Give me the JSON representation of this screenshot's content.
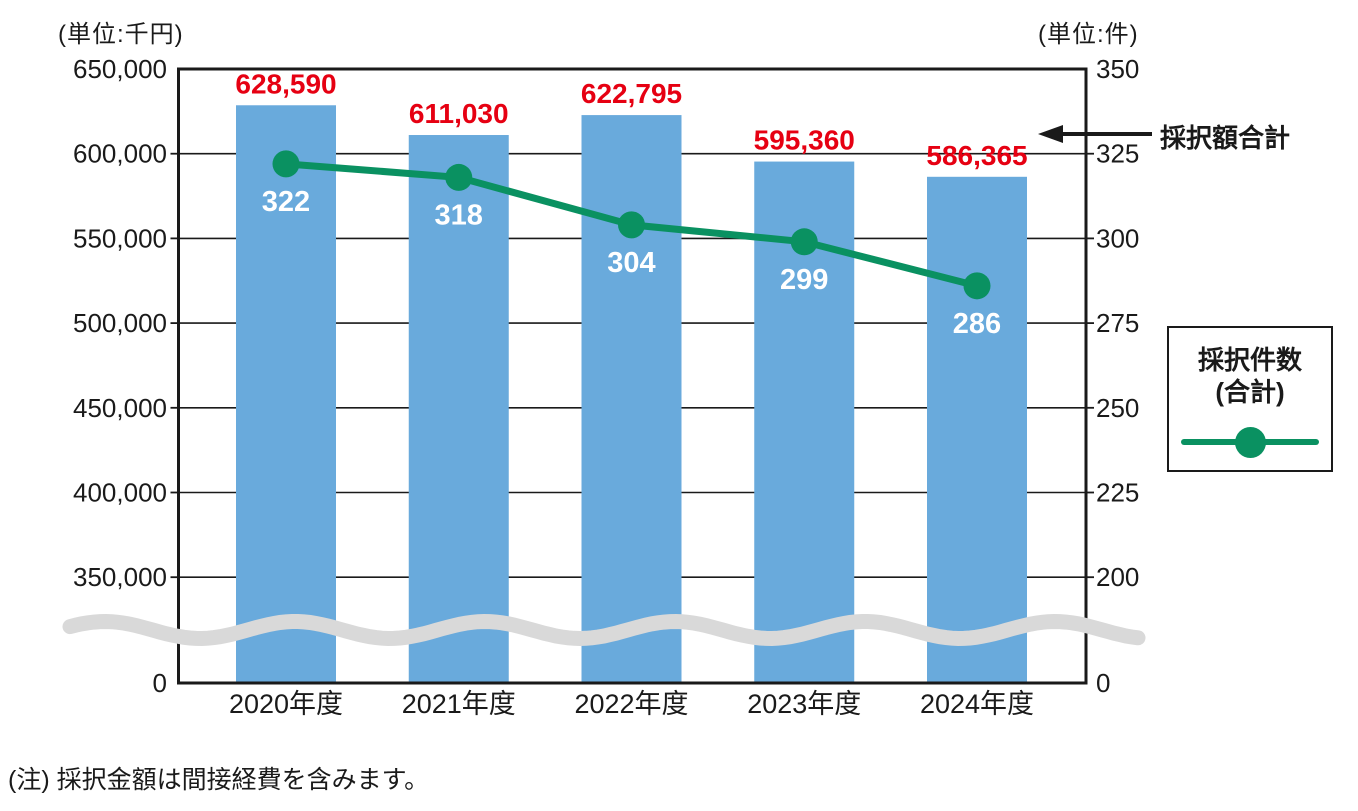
{
  "colors": {
    "bar": "#69AADC",
    "line": "#0A9161",
    "value_label": "#E60012",
    "point_label": "#FFFFFF",
    "axis": "#1A1A1A",
    "grid": "#1A1A1A",
    "wave": "#D9D9D9",
    "background": "#FFFFFF"
  },
  "chart_data": {
    "type": "combo-bar-line",
    "categories": [
      "2020年度",
      "2021年度",
      "2022年度",
      "2023年度",
      "2024年度"
    ],
    "series": [
      {
        "name": "採択額合計",
        "chart": "bar",
        "axis": "left",
        "values": [
          628590,
          611030,
          622795,
          595360,
          586365
        ],
        "value_labels": [
          "628,590",
          "611,030",
          "622,795",
          "595,360",
          "586,365"
        ]
      },
      {
        "name": "採択件数(合計)",
        "chart": "line",
        "axis": "right",
        "values": [
          322,
          318,
          304,
          299,
          286
        ],
        "value_labels": [
          "322",
          "318",
          "304",
          "299",
          "286"
        ]
      }
    ],
    "left_axis": {
      "unit_label": "(単位:千円)",
      "ticks": [
        650000,
        600000,
        550000,
        500000,
        450000,
        400000,
        350000
      ],
      "tick_labels": [
        "650,000",
        "600,000",
        "550,000",
        "500,000",
        "450,000",
        "400,000",
        "350,000"
      ],
      "zero_label": "0",
      "has_break": true
    },
    "right_axis": {
      "unit_label": "(単位:件)",
      "ticks": [
        350,
        325,
        300,
        275,
        250,
        225,
        200
      ],
      "tick_labels": [
        "350",
        "325",
        "300",
        "275",
        "250",
        "225",
        "200"
      ],
      "zero_label": "0",
      "has_break": true
    },
    "legend": {
      "lines": [
        "採択件数",
        "(合計)"
      ],
      "position": "right"
    },
    "annotation": {
      "label": "採択額合計",
      "points_to": "586,365"
    },
    "note": "(注) 採択金額は間接経費を含みます。",
    "grid": true
  }
}
